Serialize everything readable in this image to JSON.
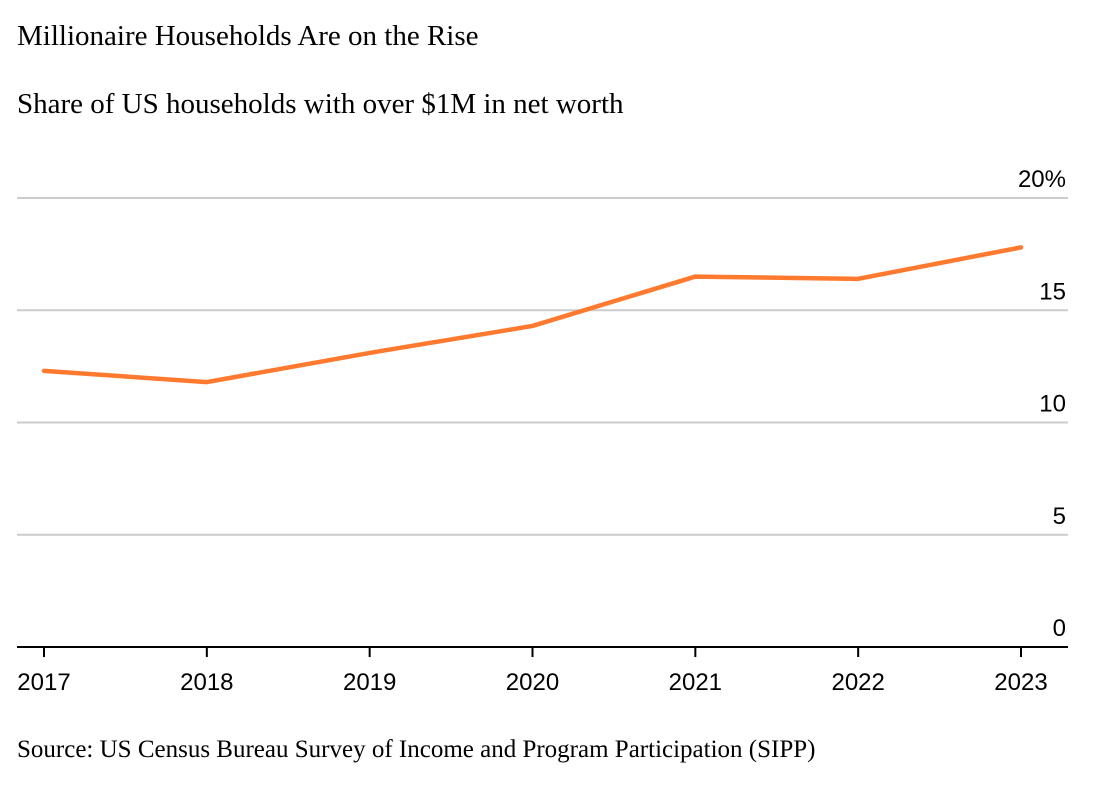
{
  "title": "Millionaire Households Are on the Rise",
  "subtitle": "Share of US households with over $1M in net worth",
  "source": "Source: US Census Bureau Survey of Income and Program Participation (SIPP)",
  "colors": {
    "line": "#ff7a2f",
    "grid": "#cccccc",
    "axis": "#000000"
  },
  "chart_data": {
    "type": "line",
    "title": "Millionaire Households Are on the Rise",
    "subtitle": "Share of US households with over $1M in net worth",
    "xlabel": "",
    "ylabel": "",
    "x": [
      "2017",
      "2018",
      "2019",
      "2020",
      "2021",
      "2022",
      "2023"
    ],
    "series": [
      {
        "name": "Share of US households with over $1M in net worth",
        "values": [
          12.3,
          11.8,
          13.1,
          14.3,
          16.5,
          16.4,
          17.8
        ]
      }
    ],
    "ylim": [
      0,
      20
    ],
    "yticks": [
      0,
      5,
      10,
      15,
      20
    ],
    "ytick_labels": [
      "0",
      "5",
      "10",
      "15",
      "20%"
    ],
    "grid": true,
    "y_axis_side": "right"
  }
}
